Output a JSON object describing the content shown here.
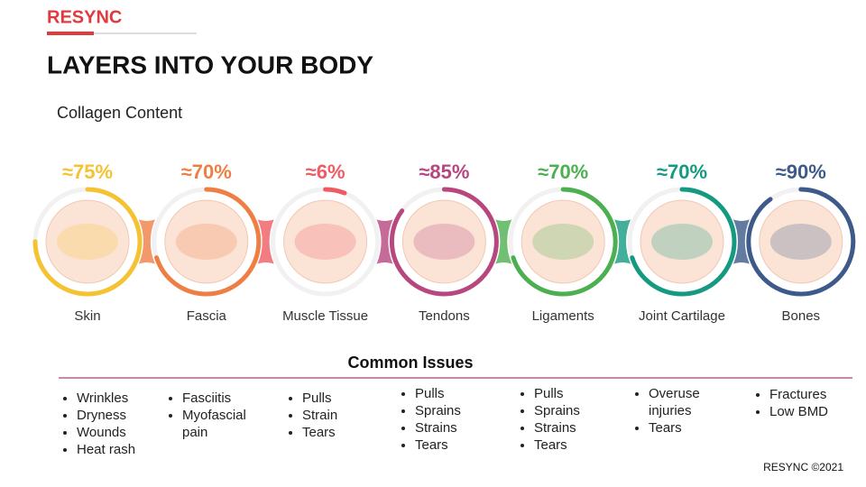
{
  "header": {
    "logo": "RESYNC",
    "title": "LAYERS INTO YOUR BODY",
    "subtitle": "Collagen Content"
  },
  "layers": [
    {
      "name": "Skin",
      "value": 75,
      "value_label": "≈75%",
      "color": "#f5c232",
      "issues": [
        "Wrinkles",
        "Dryness",
        "Wounds",
        "Heat rash"
      ]
    },
    {
      "name": "Fascia",
      "value": 70,
      "value_label": "≈70%",
      "color": "#ef7e45",
      "issues": [
        "Fasciitis",
        "Myofascial pain"
      ]
    },
    {
      "name": "Muscle Tissue",
      "value": 6,
      "value_label": "≈6%",
      "color": "#ef5b63",
      "issues": [
        "Pulls",
        "Strain",
        "Tears"
      ]
    },
    {
      "name": "Tendons",
      "value": 85,
      "value_label": "≈85%",
      "color": "#b8467f",
      "issues": [
        "Pulls",
        "Sprains",
        "Strains",
        "Tears"
      ]
    },
    {
      "name": "Ligaments",
      "value": 70,
      "value_label": "≈70%",
      "color": "#4caf50",
      "issues": [
        "Pulls",
        "Sprains",
        "Strains",
        "Tears"
      ]
    },
    {
      "name": "Joint Cartilage",
      "value": 70,
      "value_label": "≈70%",
      "color": "#149a80",
      "issues": [
        "Overuse injuries",
        "Tears"
      ]
    },
    {
      "name": "Bones",
      "value": 90,
      "value_label": "≈90%",
      "color": "#3d5a8a",
      "issues": [
        "Fractures",
        "Low BMD"
      ]
    }
  ],
  "issues_title": "Common Issues",
  "footer": "RESYNC ©2021"
}
